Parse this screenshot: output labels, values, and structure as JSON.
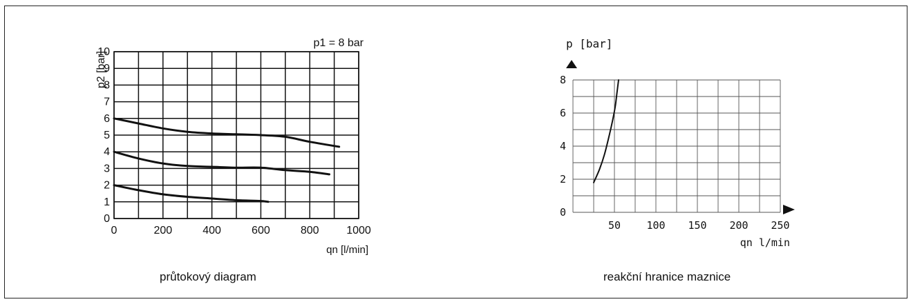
{
  "chart_data": [
    {
      "type": "line",
      "annotation": "p1 = 8 bar",
      "ylabel": "p2 [bar]",
      "xlabel": "qn [l/min]",
      "caption": "průtokový diagram",
      "xlim": [
        0,
        1000
      ],
      "ylim": [
        0,
        10
      ],
      "x_grid_step": 100,
      "y_grid_step": 1,
      "xticks": [
        0,
        200,
        400,
        600,
        800,
        1000
      ],
      "yticks": [
        0,
        1,
        2,
        3,
        4,
        5,
        6,
        7,
        8,
        9,
        10
      ],
      "grid": true,
      "series": [
        {
          "x": [
            0,
            100,
            200,
            300,
            400,
            500,
            600,
            700,
            800,
            920
          ],
          "y": [
            6,
            5.7,
            5.4,
            5.2,
            5.1,
            5.05,
            5.0,
            4.9,
            4.6,
            4.3
          ]
        },
        {
          "x": [
            0,
            100,
            200,
            300,
            400,
            500,
            600,
            700,
            800,
            880
          ],
          "y": [
            4,
            3.6,
            3.3,
            3.15,
            3.1,
            3.05,
            3.05,
            2.9,
            2.8,
            2.65
          ]
        },
        {
          "x": [
            0,
            100,
            200,
            300,
            400,
            500,
            600,
            630
          ],
          "y": [
            2,
            1.7,
            1.45,
            1.3,
            1.2,
            1.1,
            1.05,
            1.0
          ]
        }
      ]
    },
    {
      "type": "line",
      "ylabel": "p [bar]",
      "xlabel": "qn l/min",
      "caption": "reakční hranice maznice",
      "xlim": [
        0,
        250
      ],
      "ylim": [
        0,
        8
      ],
      "x_grid_step": 25,
      "y_grid_step": 1,
      "xticks": [
        50,
        100,
        150,
        200,
        250
      ],
      "yticks": [
        0,
        2,
        4,
        6,
        8
      ],
      "grid": true,
      "series": [
        {
          "x": [
            25,
            32,
            38,
            44,
            48,
            51,
            53,
            55
          ],
          "y": [
            1.8,
            2.6,
            3.5,
            4.7,
            5.6,
            6.4,
            7.2,
            8.0
          ]
        }
      ]
    }
  ]
}
